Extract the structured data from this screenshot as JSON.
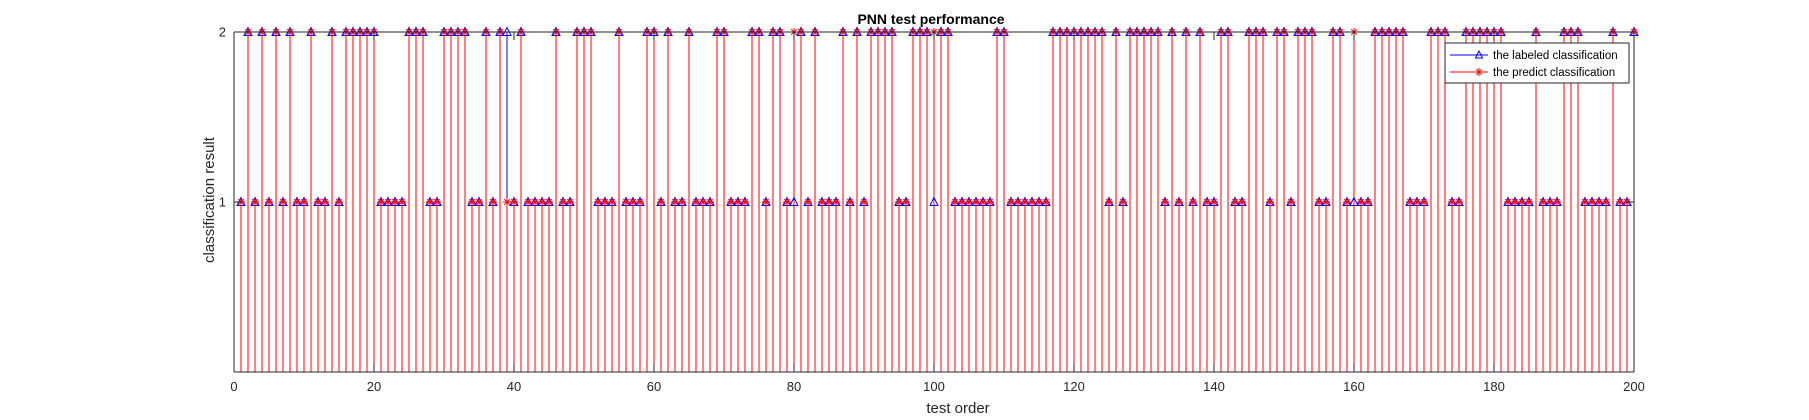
{
  "chart_data": {
    "type": "stem",
    "title": "PNN test performance",
    "xlabel": "test order",
    "ylabel": "classification result",
    "xlim": [
      0,
      200
    ],
    "ylim": [
      0,
      2
    ],
    "xticks": [
      0,
      20,
      40,
      60,
      80,
      100,
      120,
      140,
      160,
      180,
      200
    ],
    "yticks": [
      1,
      2
    ],
    "grid": false,
    "legend_position": "top-right",
    "colors": {
      "labeled": "#0000ff",
      "predict": "#ff0000",
      "axis": "#262626"
    },
    "legend": [
      "the labeled classification",
      "the predict classification"
    ],
    "x": [
      1,
      2,
      3,
      4,
      5,
      6,
      7,
      8,
      9,
      10,
      11,
      12,
      13,
      14,
      15,
      16,
      17,
      18,
      19,
      20,
      21,
      22,
      23,
      24,
      25,
      26,
      27,
      28,
      29,
      30,
      31,
      32,
      33,
      34,
      35,
      36,
      37,
      38,
      39,
      40,
      41,
      42,
      43,
      44,
      45,
      46,
      47,
      48,
      49,
      50,
      51,
      52,
      53,
      54,
      55,
      56,
      57,
      58,
      59,
      60,
      61,
      62,
      63,
      64,
      65,
      66,
      67,
      68,
      69,
      70,
      71,
      72,
      73,
      74,
      75,
      76,
      77,
      78,
      79,
      80,
      81,
      82,
      83,
      84,
      85,
      86,
      87,
      88,
      89,
      90,
      91,
      92,
      93,
      94,
      95,
      96,
      97,
      98,
      99,
      100,
      101,
      102,
      103,
      104,
      105,
      106,
      107,
      108,
      109,
      110,
      111,
      112,
      113,
      114,
      115,
      116,
      117,
      118,
      119,
      120,
      121,
      122,
      123,
      124,
      125,
      126,
      127,
      128,
      129,
      130,
      131,
      132,
      133,
      134,
      135,
      136,
      137,
      138,
      139,
      140,
      141,
      142,
      143,
      144,
      145,
      146,
      147,
      148,
      149,
      150,
      151,
      152,
      153,
      154,
      155,
      156,
      157,
      158,
      159,
      160,
      161,
      162,
      163,
      164,
      165,
      166,
      167,
      168,
      169,
      170,
      171,
      172,
      173,
      174,
      175,
      176,
      177,
      178,
      179,
      180,
      181,
      182,
      183,
      184,
      185,
      186,
      187,
      188,
      189,
      190,
      191,
      192,
      193,
      194,
      195,
      196,
      197,
      198,
      199,
      200
    ],
    "series": [
      {
        "name": "the labeled classification",
        "marker": "triangle",
        "values": [
          1,
          2,
          1,
          2,
          1,
          2,
          1,
          2,
          1,
          1,
          2,
          1,
          1,
          2,
          1,
          2,
          2,
          2,
          2,
          2,
          1,
          1,
          1,
          1,
          2,
          2,
          2,
          1,
          1,
          2,
          2,
          2,
          2,
          1,
          1,
          2,
          1,
          2,
          2,
          1,
          2,
          1,
          1,
          1,
          1,
          2,
          1,
          1,
          2,
          2,
          2,
          1,
          1,
          1,
          2,
          1,
          1,
          1,
          2,
          2,
          1,
          2,
          1,
          1,
          2,
          1,
          1,
          1,
          2,
          2,
          1,
          1,
          1,
          2,
          2,
          1,
          2,
          2,
          1,
          1,
          2,
          1,
          2,
          1,
          1,
          1,
          2,
          1,
          2,
          1,
          2,
          2,
          2,
          2,
          1,
          1,
          2,
          2,
          2,
          1,
          2,
          2,
          1,
          1,
          1,
          1,
          1,
          1,
          2,
          2,
          1,
          1,
          1,
          1,
          1,
          1,
          2,
          2,
          2,
          2,
          2,
          2,
          2,
          2,
          1,
          2,
          1,
          2,
          2,
          2,
          2,
          2,
          1,
          2,
          1,
          2,
          1,
          2,
          1,
          1,
          2,
          2,
          1,
          1,
          2,
          2,
          2,
          1,
          2,
          2,
          1,
          2,
          2,
          2,
          1,
          1,
          2,
          2,
          1,
          1,
          1,
          1,
          2,
          2,
          2,
          2,
          2,
          1,
          1,
          1,
          2,
          2,
          2,
          1,
          1,
          2,
          2,
          2,
          2,
          2,
          2,
          1,
          1,
          1,
          1,
          2,
          1,
          1,
          1,
          2,
          2,
          2,
          1,
          1,
          1,
          1,
          2,
          1,
          1,
          2
        ]
      },
      {
        "name": "the predict classification",
        "marker": "asterisk",
        "values": [
          1,
          2,
          1,
          2,
          1,
          2,
          1,
          2,
          1,
          1,
          2,
          1,
          1,
          2,
          1,
          2,
          2,
          2,
          2,
          2,
          1,
          1,
          1,
          1,
          2,
          2,
          2,
          1,
          1,
          2,
          2,
          2,
          2,
          1,
          1,
          2,
          1,
          2,
          1,
          1,
          2,
          1,
          1,
          1,
          1,
          2,
          1,
          1,
          2,
          2,
          2,
          1,
          1,
          1,
          2,
          1,
          1,
          1,
          2,
          2,
          1,
          2,
          1,
          1,
          2,
          1,
          1,
          1,
          2,
          2,
          1,
          1,
          1,
          2,
          2,
          1,
          2,
          2,
          1,
          2,
          2,
          1,
          2,
          1,
          1,
          1,
          2,
          1,
          2,
          1,
          2,
          2,
          2,
          2,
          1,
          1,
          2,
          2,
          2,
          2,
          2,
          2,
          1,
          1,
          1,
          1,
          1,
          1,
          2,
          2,
          1,
          1,
          1,
          1,
          1,
          1,
          2,
          2,
          2,
          2,
          2,
          2,
          2,
          2,
          1,
          2,
          1,
          2,
          2,
          2,
          2,
          2,
          1,
          2,
          1,
          2,
          1,
          2,
          1,
          1,
          2,
          2,
          1,
          1,
          2,
          2,
          2,
          1,
          2,
          2,
          1,
          2,
          2,
          2,
          1,
          1,
          2,
          2,
          1,
          2,
          1,
          1,
          2,
          2,
          2,
          2,
          2,
          1,
          1,
          1,
          2,
          2,
          2,
          1,
          1,
          2,
          2,
          2,
          2,
          2,
          2,
          1,
          1,
          1,
          1,
          2,
          1,
          1,
          1,
          2,
          2,
          2,
          1,
          1,
          1,
          1,
          2,
          1,
          1,
          2
        ]
      }
    ]
  }
}
